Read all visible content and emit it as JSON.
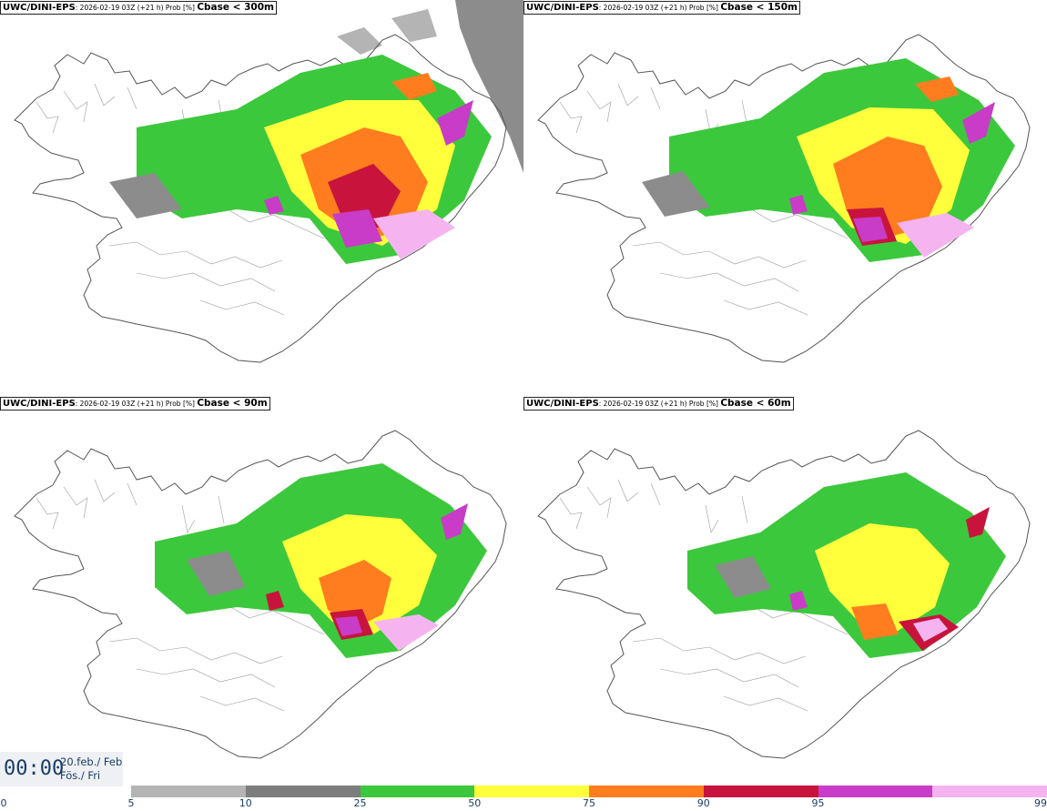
{
  "panels": [
    {
      "model": "UWC/DINI-EPS",
      "run": ": 2026-02-19 03Z (+21 h) Prob [%] ",
      "threshold": "Cbase < 300m"
    },
    {
      "model": "UWC/DINI-EPS",
      "run": ": 2026-02-19 03Z (+21 h) Prob [%] ",
      "threshold": "Cbase < 150m"
    },
    {
      "model": "UWC/DINI-EPS",
      "run": ": 2026-02-19 03Z (+21 h) Prob [%] ",
      "threshold": "Cbase < 90m"
    },
    {
      "model": "UWC/DINI-EPS",
      "run": ": 2026-02-19 03Z (+21 h) Prob [%] ",
      "threshold": "Cbase < 60m"
    }
  ],
  "valid_time": {
    "time": "00:00",
    "date_line1": "20.feb./ Feb",
    "date_line2": "Fös./ Fri"
  },
  "colorbar": {
    "ticks": [
      "0",
      "5",
      "10",
      "25",
      "50",
      "75",
      "90",
      "95",
      "99"
    ],
    "colors": [
      "#b4b4b4",
      "#7d7d7d",
      "#3cc83c",
      "#ffff3c",
      "#ff7d1e",
      "#c8143c",
      "#c83cc8",
      "#f5b4f0"
    ]
  }
}
